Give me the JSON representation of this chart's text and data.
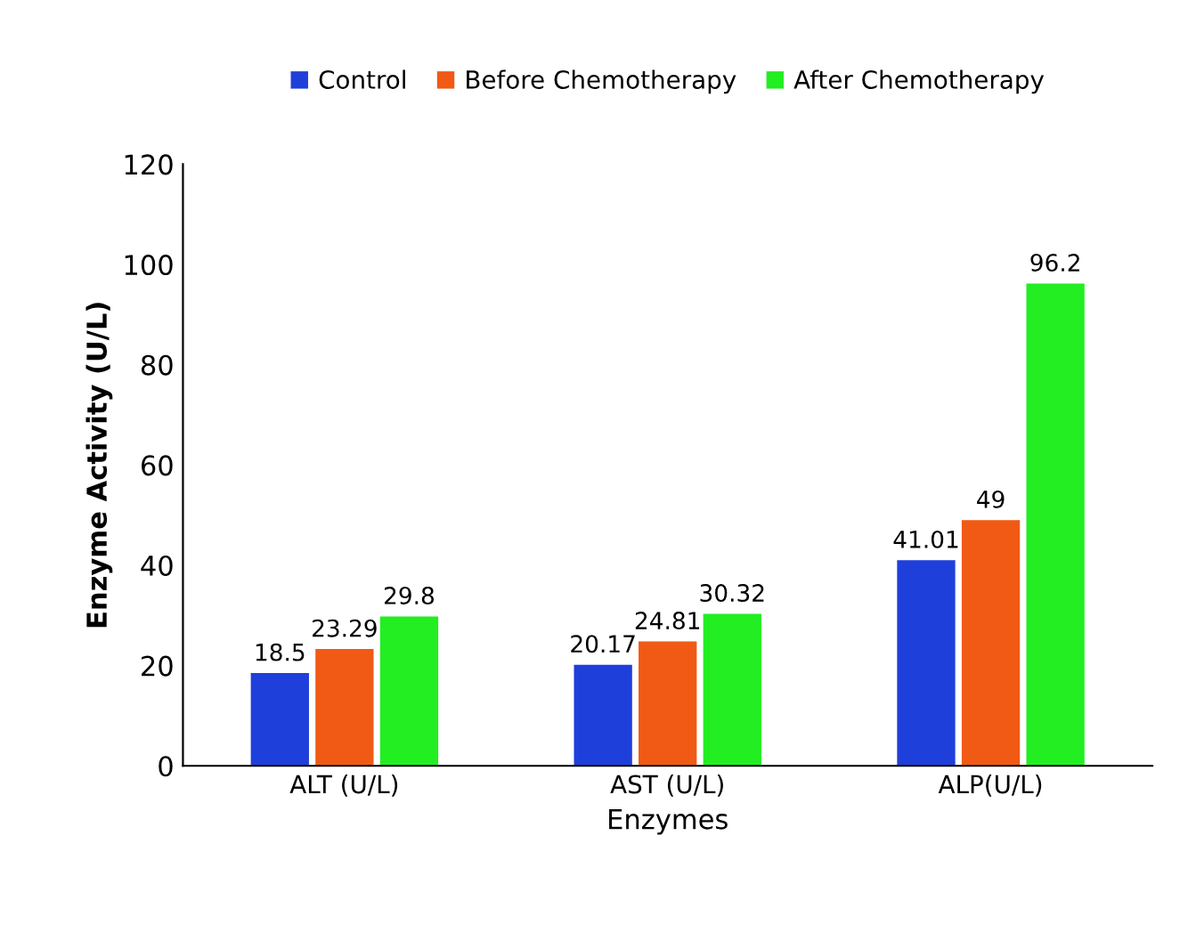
{
  "chart_data": {
    "type": "bar",
    "xlabel": "Enzymes",
    "ylabel": "Enzyme Activity (U/L)",
    "categories": [
      "ALT (U/L)",
      "AST (U/L)",
      "ALP(U/L)"
    ],
    "series": [
      {
        "name": "Control",
        "color": "#1f3fdb",
        "values": [
          18.5,
          20.17,
          41.01
        ]
      },
      {
        "name": "Before Chemotherapy",
        "color": "#f05a14",
        "values": [
          23.29,
          24.81,
          49
        ]
      },
      {
        "name": "After Chemotherapy",
        "color": "#22ee22",
        "values": [
          29.8,
          30.32,
          96.2
        ]
      }
    ],
    "ylim": [
      0,
      120
    ],
    "yticks": [
      0,
      20,
      40,
      60,
      80,
      100,
      120
    ],
    "grid": false,
    "legend": "top",
    "data_labels": true
  }
}
